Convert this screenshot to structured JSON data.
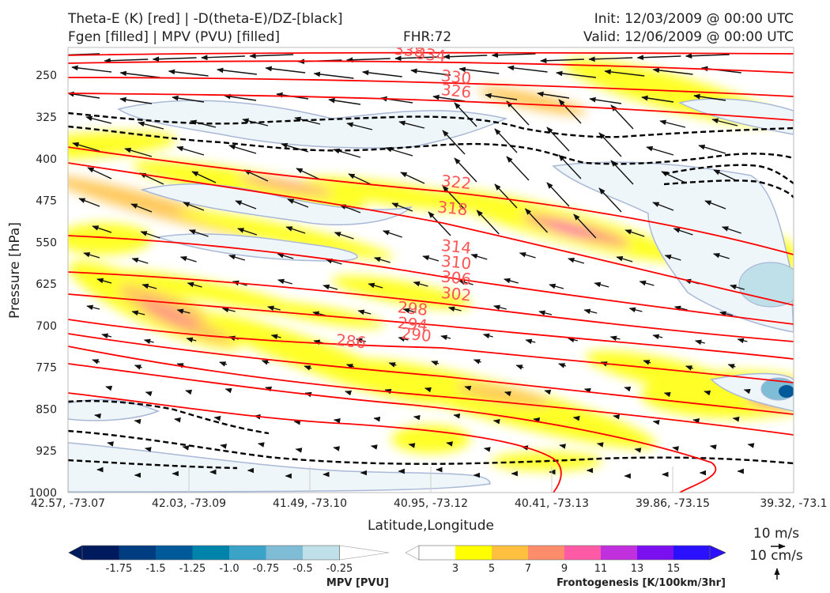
{
  "header": {
    "title_line1": "Theta-E (K) [red] | -D(theta-E)/DZ-[black]",
    "title_line2": "Fgen [filled] | MPV (PVU) [filled]",
    "fhr": "FHR:72",
    "init": "Init: 12/03/2009 @ 00:00 UTC",
    "valid": "Valid: 12/06/2009 @ 00:00 UTC"
  },
  "colors": {
    "theta_e": "#ff0000",
    "theta_e_label": "#ff5555",
    "dthetae_dz": "#000000",
    "mpv_outline": "#a9b8d6",
    "fgen_scale": [
      "#ffff00",
      "#ffc040",
      "#ff8c6a",
      "#ff5aa5",
      "#c030dd",
      "#7a10f0",
      "#2a10ff"
    ],
    "mpv_scale": [
      "#001a5e",
      "#003c80",
      "#005a9a",
      "#0083aa",
      "#3ba3c8",
      "#7fbcd6",
      "#bfe0e8",
      "#ffffff"
    ]
  },
  "chart_data": {
    "type": "cross-section",
    "xlabel": "Latitude,Longitude",
    "ylabel": "Pressure [hPa]",
    "x_ticks": [
      "42.57, -73.07",
      "42.03, -73.09",
      "41.49, -73.10",
      "40.95, -73.12",
      "40.41, -73.13",
      "39.86, -73.15",
      "39.32, -73.1"
    ],
    "y_ticks": [
      250,
      325,
      400,
      475,
      550,
      625,
      700,
      775,
      850,
      925,
      1000
    ],
    "ylim": [
      1000,
      200
    ],
    "theta_e_levels": [
      286,
      290,
      294,
      298,
      302,
      306,
      310,
      314,
      318,
      322,
      326,
      330,
      334,
      338
    ],
    "theta_e_labels": [
      {
        "text": "338",
        "x": 0.47,
        "p": 205
      },
      {
        "text": "334",
        "x": 0.5,
        "p": 213
      },
      {
        "text": "330",
        "x": 0.535,
        "p": 253
      },
      {
        "text": "326",
        "x": 0.535,
        "p": 278
      },
      {
        "text": "322",
        "x": 0.535,
        "p": 442
      },
      {
        "text": "318",
        "x": 0.53,
        "p": 489
      },
      {
        "text": "314",
        "x": 0.535,
        "p": 558
      },
      {
        "text": "310",
        "x": 0.535,
        "p": 586
      },
      {
        "text": "306",
        "x": 0.535,
        "p": 614
      },
      {
        "text": "302",
        "x": 0.535,
        "p": 643
      },
      {
        "text": "298",
        "x": 0.475,
        "p": 669
      },
      {
        "text": "294",
        "x": 0.475,
        "p": 697
      },
      {
        "text": "290",
        "x": 0.48,
        "p": 716
      },
      {
        "text": "286",
        "x": 0.39,
        "p": 728
      }
    ],
    "wind_reference": {
      "u_label": "10 m/s",
      "w_label": "10 cm/s"
    },
    "mpv_colorbar": {
      "label": "MPV [PVU]",
      "ticks": [
        "-1.75",
        "-1.5",
        "-1.25",
        "-1.0",
        "-0.75",
        "-0.5",
        "-0.25"
      ]
    },
    "fgen_colorbar": {
      "label": "Frontogenesis [K/100km/3hr]",
      "ticks": [
        "3",
        "5",
        "7",
        "9",
        "11",
        "13",
        "15"
      ]
    }
  }
}
